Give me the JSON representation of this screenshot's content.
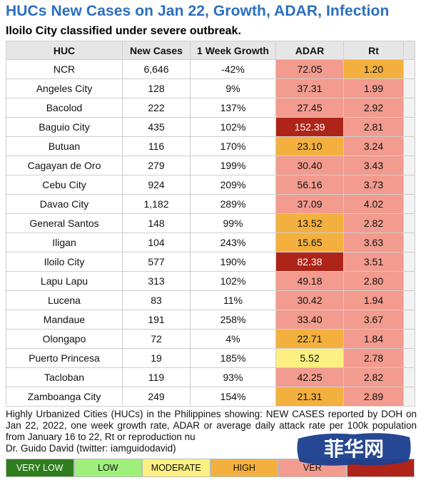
{
  "header": {
    "title": "HUCs New Cases on Jan 22, Growth, ADAR, Infection",
    "subtitle": "Iloilo City classified under severe outbreak."
  },
  "colors": {
    "very_low": "#2e7d1e",
    "low": "#9ef07a",
    "moderate": "#fbf081",
    "high": "#f3b03e",
    "very_high": "#f29b8e",
    "severe": "#ae2418",
    "header_bg": "#e6e6e6",
    "title": "#2a6fc0"
  },
  "chart_data": {
    "type": "table",
    "columns": [
      "HUC",
      "New Cases",
      "1 Week Growth",
      "ADAR",
      "Rt"
    ],
    "rows": [
      {
        "huc": "NCR",
        "new_cases": "6,646",
        "growth": "-42%",
        "adar": "72.05",
        "adar_level": "very_high",
        "rt": "1.20",
        "rt_level": "high"
      },
      {
        "huc": "Angeles City",
        "new_cases": "128",
        "growth": "9%",
        "adar": "37.31",
        "adar_level": "very_high",
        "rt": "1.99",
        "rt_level": "very_high"
      },
      {
        "huc": "Bacolod",
        "new_cases": "222",
        "growth": "137%",
        "adar": "27.45",
        "adar_level": "very_high",
        "rt": "2.92",
        "rt_level": "very_high"
      },
      {
        "huc": "Baguio City",
        "new_cases": "435",
        "growth": "102%",
        "adar": "152.39",
        "adar_level": "severe",
        "rt": "2.81",
        "rt_level": "very_high"
      },
      {
        "huc": "Butuan",
        "new_cases": "116",
        "growth": "170%",
        "adar": "23.10",
        "adar_level": "high",
        "rt": "3.24",
        "rt_level": "very_high"
      },
      {
        "huc": "Cagayan de Oro",
        "new_cases": "279",
        "growth": "199%",
        "adar": "30.40",
        "adar_level": "very_high",
        "rt": "3.43",
        "rt_level": "very_high"
      },
      {
        "huc": "Cebu City",
        "new_cases": "924",
        "growth": "209%",
        "adar": "56.16",
        "adar_level": "very_high",
        "rt": "3.73",
        "rt_level": "very_high"
      },
      {
        "huc": "Davao City",
        "new_cases": "1,182",
        "growth": "289%",
        "adar": "37.09",
        "adar_level": "very_high",
        "rt": "4.02",
        "rt_level": "very_high"
      },
      {
        "huc": "General Santos",
        "new_cases": "148",
        "growth": "99%",
        "adar": "13.52",
        "adar_level": "high",
        "rt": "2.82",
        "rt_level": "very_high"
      },
      {
        "huc": "Iligan",
        "new_cases": "104",
        "growth": "243%",
        "adar": "15.65",
        "adar_level": "high",
        "rt": "3.63",
        "rt_level": "very_high"
      },
      {
        "huc": "Iloilo City",
        "new_cases": "577",
        "growth": "190%",
        "adar": "82.38",
        "adar_level": "severe",
        "rt": "3.51",
        "rt_level": "very_high"
      },
      {
        "huc": "Lapu Lapu",
        "new_cases": "313",
        "growth": "102%",
        "adar": "49.18",
        "adar_level": "very_high",
        "rt": "2.80",
        "rt_level": "very_high"
      },
      {
        "huc": "Lucena",
        "new_cases": "83",
        "growth": "11%",
        "adar": "30.42",
        "adar_level": "very_high",
        "rt": "1.94",
        "rt_level": "very_high"
      },
      {
        "huc": "Mandaue",
        "new_cases": "191",
        "growth": "258%",
        "adar": "33.40",
        "adar_level": "very_high",
        "rt": "3.67",
        "rt_level": "very_high"
      },
      {
        "huc": "Olongapo",
        "new_cases": "72",
        "growth": "4%",
        "adar": "22.71",
        "adar_level": "high",
        "rt": "1.84",
        "rt_level": "very_high"
      },
      {
        "huc": "Puerto Princesa",
        "new_cases": "19",
        "growth": "185%",
        "adar": "5.52",
        "adar_level": "moderate",
        "rt": "2.78",
        "rt_level": "very_high"
      },
      {
        "huc": "Tacloban",
        "new_cases": "119",
        "growth": "93%",
        "adar": "42.25",
        "adar_level": "very_high",
        "rt": "2.82",
        "rt_level": "very_high"
      },
      {
        "huc": "Zamboanga City",
        "new_cases": "249",
        "growth": "154%",
        "adar": "21.31",
        "adar_level": "high",
        "rt": "2.89",
        "rt_level": "very_high"
      }
    ]
  },
  "footer": {
    "note": "Highly Urbanized Cities (HUCs) in the Philippines showing: NEW CASES reported by DOH on Jan 22, 2022, one week growth rate, ADAR or average daily attack rate per 100k population from January 16 to 22, Rt or reproduction nu",
    "credit": "Dr. Guido David (twitter: iamguidodavid)"
  },
  "legend": [
    {
      "label": "VERY LOW",
      "level": "very_low"
    },
    {
      "label": "LOW",
      "level": "low"
    },
    {
      "label": "MODERATE",
      "level": "moderate"
    },
    {
      "label": "HIGH",
      "level": "high"
    },
    {
      "label": "VER",
      "level": "very_high"
    },
    {
      "label": "",
      "level": "severe"
    }
  ],
  "watermark": {
    "text": "菲华网"
  }
}
